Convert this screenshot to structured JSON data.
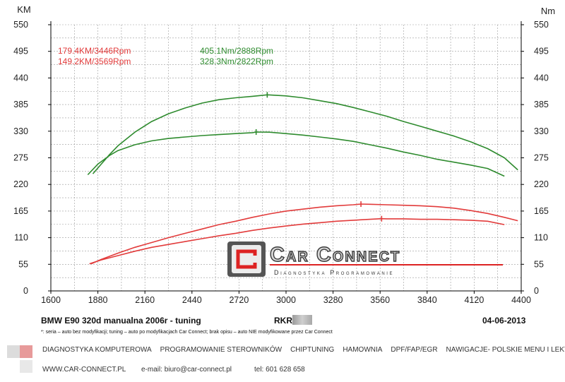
{
  "chart_data": {
    "type": "line",
    "x_ticks": [
      1600,
      1880,
      2160,
      2440,
      2720,
      3000,
      3280,
      3560,
      3840,
      4120,
      4400
    ],
    "xlim": [
      1600,
      4400
    ],
    "left_axis": {
      "label": "KM",
      "ticks": [
        0,
        55,
        110,
        165,
        220,
        275,
        330,
        385,
        440,
        495,
        550
      ],
      "ylim": [
        0,
        550
      ]
    },
    "right_axis": {
      "label": "Nm",
      "ticks": [
        0,
        55,
        110,
        165,
        220,
        275,
        330,
        385,
        440,
        495,
        550
      ],
      "ylim": [
        0,
        550
      ]
    },
    "grid": true,
    "annotations": {
      "power_tuned": "179.4KM/3446Rpm",
      "power_stock": "149.2KM/3569Rpm",
      "torque_tuned": "405.1Nm/2888Rpm",
      "torque_stock": "328.3Nm/2822Rpm"
    },
    "series": [
      {
        "color": "#e23b3b",
        "peak_x": 3446,
        "x": [
          1840,
          1900,
          2000,
          2100,
          2200,
          2300,
          2400,
          2500,
          2600,
          2700,
          2800,
          2900,
          3000,
          3100,
          3200,
          3300,
          3400,
          3446,
          3500,
          3600,
          3700,
          3800,
          3900,
          4000,
          4100,
          4200,
          4300,
          4380
        ],
        "y": [
          56,
          65,
          78,
          90,
          100,
          110,
          119,
          128,
          137,
          144,
          152,
          159,
          165,
          169,
          173,
          176,
          178,
          179.4,
          179,
          178,
          177,
          176,
          174,
          171,
          166,
          160,
          152,
          145
        ]
      },
      {
        "color": "#e23b3b",
        "peak_x": 3569,
        "x": [
          1830,
          1900,
          2000,
          2100,
          2200,
          2300,
          2400,
          2500,
          2600,
          2700,
          2800,
          2900,
          3000,
          3100,
          3200,
          3300,
          3400,
          3500,
          3569,
          3600,
          3700,
          3800,
          3900,
          4000,
          4100,
          4200,
          4300
        ],
        "y": [
          56,
          64,
          73,
          82,
          90,
          96,
          102,
          108,
          114,
          119,
          125,
          130,
          134,
          138,
          141,
          144,
          146,
          148,
          149.2,
          149,
          149,
          148,
          148,
          147,
          146,
          144,
          137
        ]
      },
      {
        "color": "#2e8b2e",
        "peak_x": 2888,
        "x": [
          1850,
          1900,
          1950,
          2000,
          2100,
          2200,
          2300,
          2400,
          2500,
          2600,
          2700,
          2800,
          2888,
          2900,
          3000,
          3100,
          3200,
          3300,
          3400,
          3500,
          3600,
          3700,
          3800,
          3900,
          4000,
          4100,
          4200,
          4300,
          4380
        ],
        "y": [
          242,
          262,
          282,
          300,
          328,
          350,
          366,
          378,
          388,
          395,
          399,
          402,
          405.1,
          405,
          403,
          399,
          393,
          387,
          379,
          370,
          361,
          350,
          340,
          330,
          320,
          308,
          294,
          275,
          250
        ]
      },
      {
        "color": "#2e8b2e",
        "peak_x": 2822,
        "x": [
          1820,
          1880,
          1950,
          2000,
          2100,
          2200,
          2300,
          2400,
          2500,
          2600,
          2700,
          2800,
          2822,
          2900,
          3000,
          3100,
          3200,
          3300,
          3400,
          3500,
          3600,
          3700,
          3800,
          3900,
          4000,
          4100,
          4200,
          4300
        ],
        "y": [
          240,
          262,
          280,
          290,
          302,
          310,
          315,
          318,
          321,
          323,
          325,
          327,
          328.3,
          328,
          325,
          322,
          318,
          314,
          309,
          302,
          295,
          287,
          280,
          272,
          266,
          260,
          253,
          237
        ]
      }
    ]
  },
  "logo": {
    "title": "Car Connect",
    "tagline": "Diagnostyka Programowanie"
  },
  "footer": {
    "title": "BMW E90 320d manualna 2006r - tuning",
    "code": "RKR",
    "date": "04-06-2013",
    "footnote": "*: seria – auto bez modyfikacji; tuning – auto po modyfikacjach Car Connect; brak opisu – auto NIE modyfikowane przez Car Connect",
    "services": [
      "DIAGNOSTYKA KOMPUTEROWA",
      "PROGRAMOWANIE STEROWNIKÓW",
      "CHIPTUNING",
      "HAMOWNIA",
      "DPF/FAP/EGR",
      "NAWIGACJE- POLSKIE MENU I LEKTOR"
    ],
    "website": "WWW.CAR-CONNECT.PL",
    "email": "e-mail: biuro@car-connect.pl",
    "phone": "tel: 601 628 658"
  }
}
